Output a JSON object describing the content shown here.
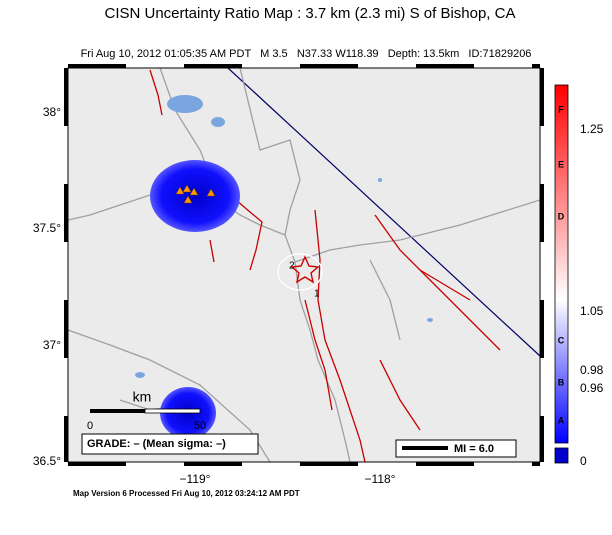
{
  "header": {
    "title": "CISN Uncertainty Ratio Map : 3.7 km (2.3 mi) S of Bishop, CA",
    "subtitle": "Fri Aug 10, 2012 01:05:35 AM PDT   M 3.5   N37.33 W118.39   Depth: 13.5km   ID:71829206"
  },
  "map": {
    "lat_labels": [
      "38°",
      "37.5°",
      "37°",
      "36.5°"
    ],
    "lon_labels": [
      "−119°",
      "−118°"
    ],
    "station_labels": [
      "2",
      "1"
    ],
    "scale_bar": {
      "unit": "km",
      "start": "0",
      "end": "50"
    },
    "grade": "GRADE: – (Mean sigma: –)",
    "legend": "MI = 6.0"
  },
  "colorbar": {
    "letters": [
      "F",
      "E",
      "D",
      "C",
      "B",
      "A"
    ],
    "ticks": [
      "1.25",
      "1.05",
      "0.98",
      "0.96",
      "0"
    ]
  },
  "footer": "Map Version 6 Processed Fri Aug 10, 2012 03:24:12 AM PDT"
}
